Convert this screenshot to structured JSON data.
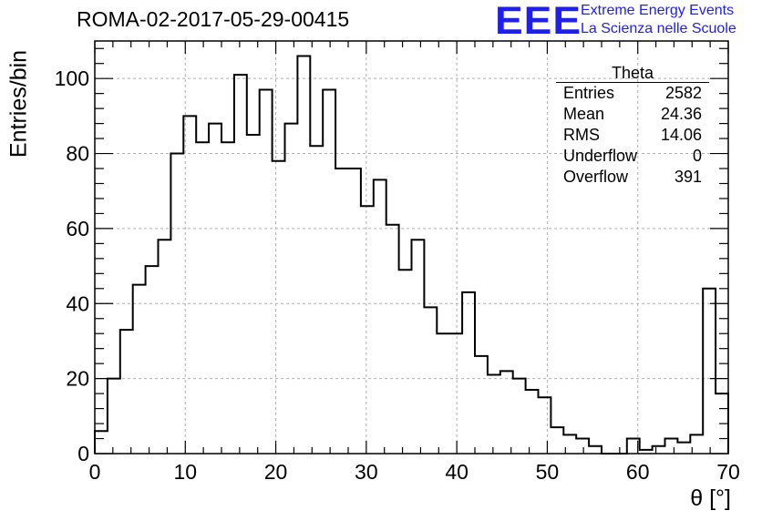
{
  "title": "ROMA-02-2017-05-29-00415",
  "logo": {
    "mark": "EEE",
    "line1": "Extreme Energy Events",
    "line2": "La Scienza nelle Scuole",
    "color": "#1f1fe8"
  },
  "stats_box": {
    "name": "Theta",
    "rows": [
      {
        "label": "Entries",
        "value": "2582"
      },
      {
        "label": "Mean",
        "value": "24.36"
      },
      {
        "label": "RMS",
        "value": "14.06"
      },
      {
        "label": "Underflow",
        "value": "0"
      },
      {
        "label": "Overflow",
        "value": "391"
      }
    ]
  },
  "chart_data": {
    "type": "bar",
    "style": "step-histogram",
    "xlabel": "θ [°]",
    "ylabel": "Entries/bin",
    "xlim": [
      0,
      70
    ],
    "ylim": [
      0,
      110
    ],
    "grid": true,
    "bin_width": 1.4,
    "x_ticks": [
      "0",
      "10",
      "20",
      "30",
      "40",
      "50",
      "60",
      "70"
    ],
    "y_ticks": [
      "0",
      "20",
      "40",
      "60",
      "80",
      "100"
    ],
    "values": [
      6,
      20,
      33,
      45,
      50,
      57,
      80,
      90,
      83,
      88,
      83,
      101,
      85,
      97,
      78,
      88,
      106,
      82,
      97,
      76,
      76,
      66,
      73,
      61,
      49,
      57,
      39,
      32,
      32,
      43,
      26,
      21,
      22,
      20,
      17,
      15,
      7,
      5,
      4,
      2,
      0,
      0,
      4,
      1,
      2,
      4,
      3,
      5,
      44,
      16
    ]
  }
}
